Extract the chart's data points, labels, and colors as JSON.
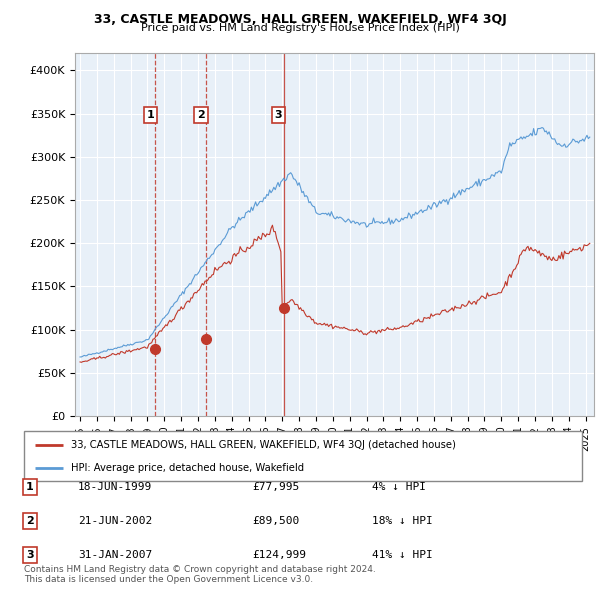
{
  "title1": "33, CASTLE MEADOWS, HALL GREEN, WAKEFIELD, WF4 3QJ",
  "title2": "Price paid vs. HM Land Registry's House Price Index (HPI)",
  "ylabel_ticks": [
    "£0",
    "£50K",
    "£100K",
    "£150K",
    "£200K",
    "£250K",
    "£300K",
    "£350K",
    "£400K"
  ],
  "ytick_values": [
    0,
    50000,
    100000,
    150000,
    200000,
    250000,
    300000,
    350000,
    400000
  ],
  "ylim": [
    0,
    420000
  ],
  "xlim_start": 1994.7,
  "xlim_end": 2025.5,
  "hpi_color": "#5b9bd5",
  "hpi_fill_color": "#dce6f1",
  "price_color": "#c0392b",
  "sale_marker_color": "#c0392b",
  "sale_label_border": "#c0392b",
  "chart_bg": "#e8f0f8",
  "grid_color": "#ffffff",
  "footnote": "Contains HM Land Registry data © Crown copyright and database right 2024.\nThis data is licensed under the Open Government Licence v3.0.",
  "legend_line1": "33, CASTLE MEADOWS, HALL GREEN, WAKEFIELD, WF4 3QJ (detached house)",
  "legend_line2": "HPI: Average price, detached house, Wakefield",
  "sales": [
    {
      "num": 1,
      "date_label": "18-JUN-1999",
      "price_label": "£77,995",
      "hpi_label": "4% ↓ HPI",
      "year": 1999.46,
      "price": 77995
    },
    {
      "num": 2,
      "date_label": "21-JUN-2002",
      "price_label": "£89,500",
      "hpi_label": "18% ↓ HPI",
      "year": 2002.47,
      "price": 89500
    },
    {
      "num": 3,
      "date_label": "31-JAN-2007",
      "price_label": "£124,999",
      "hpi_label": "41% ↓ HPI",
      "year": 2007.08,
      "price": 124999
    }
  ]
}
